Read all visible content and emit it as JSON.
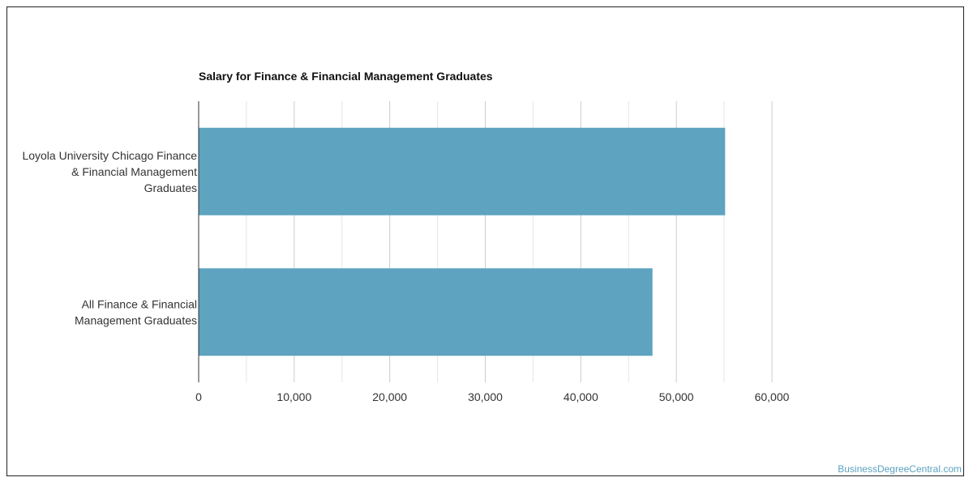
{
  "chart_data": {
    "type": "bar",
    "orientation": "horizontal",
    "title": "Salary for Finance & Financial Management Graduates",
    "xlabel": "",
    "ylabel": "",
    "categories": [
      [
        "Loyola University Chicago Finance",
        "& Financial Management",
        "Graduates"
      ],
      [
        "All Finance & Financial",
        "Management Graduates"
      ]
    ],
    "values": [
      55100,
      47500
    ],
    "xlim": [
      0,
      60000
    ],
    "ticks": [
      0,
      10000,
      20000,
      30000,
      40000,
      50000,
      60000
    ],
    "tick_labels": [
      "0",
      "10,000",
      "20,000",
      "30,000",
      "40,000",
      "50,000",
      "60,000"
    ],
    "grid": true,
    "bar_color": "#5ea3bf",
    "legend": "none"
  },
  "watermark": "BusinessDegreeCentral.com"
}
